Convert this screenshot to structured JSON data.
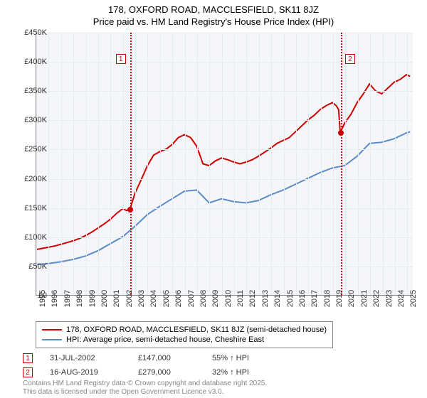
{
  "title": {
    "line1": "178, OXFORD ROAD, MACCLESFIELD, SK11 8JZ",
    "line2": "Price paid vs. HM Land Registry's House Price Index (HPI)"
  },
  "chart": {
    "type": "line",
    "background_color": "#f4f6f9",
    "grid_color": "#e8ebee",
    "ylim": [
      0,
      450000
    ],
    "ytick_step": 50000,
    "ytick_labels": [
      "£0",
      "£50K",
      "£100K",
      "£150K",
      "£200K",
      "£250K",
      "£300K",
      "£350K",
      "£400K",
      "£450K"
    ],
    "xlim": [
      1995,
      2025.5
    ],
    "xtick_step": 1,
    "xtick_labels": [
      "1995",
      "1996",
      "1997",
      "1998",
      "1999",
      "2000",
      "2001",
      "2002",
      "2003",
      "2004",
      "2005",
      "2006",
      "2007",
      "2008",
      "2009",
      "2010",
      "2011",
      "2012",
      "2013",
      "2014",
      "2015",
      "2016",
      "2017",
      "2018",
      "2019",
      "2020",
      "2021",
      "2022",
      "2023",
      "2024",
      "2025"
    ],
    "series": [
      {
        "name": "price_paid",
        "label": "178, OXFORD ROAD, MACCLESFIELD, SK11 8JZ (semi-detached house)",
        "color": "#cc0000",
        "line_width": 2,
        "x": [
          1995,
          1995.5,
          1996,
          1996.5,
          1997,
          1997.5,
          1998,
          1998.5,
          1999,
          1999.5,
          2000,
          2000.5,
          2001,
          2001.5,
          2002,
          2002.3,
          2002.58,
          2003,
          2003.5,
          2004,
          2004.5,
          2005,
          2005.5,
          2006,
          2006.5,
          2007,
          2007.5,
          2008,
          2008.5,
          2009,
          2009.5,
          2010,
          2010.5,
          2011,
          2011.5,
          2012,
          2012.5,
          2013,
          2013.5,
          2014,
          2014.5,
          2015,
          2015.5,
          2016,
          2016.5,
          2017,
          2017.5,
          2018,
          2018.5,
          2019,
          2019.3,
          2019.5,
          2019.629,
          2020,
          2020.5,
          2021,
          2021.5,
          2022,
          2022.5,
          2023,
          2023.5,
          2024,
          2024.5,
          2025,
          2025.3
        ],
        "y": [
          78000,
          80000,
          82000,
          84000,
          87000,
          90000,
          93000,
          97000,
          102000,
          108000,
          115000,
          122000,
          130000,
          140000,
          148000,
          145000,
          147000,
          175000,
          198000,
          222000,
          240000,
          246000,
          250000,
          258000,
          270000,
          275000,
          270000,
          255000,
          225000,
          222000,
          230000,
          235000,
          232000,
          228000,
          225000,
          228000,
          232000,
          238000,
          245000,
          252000,
          260000,
          265000,
          270000,
          280000,
          290000,
          300000,
          308000,
          318000,
          325000,
          330000,
          325000,
          318000,
          279000,
          295000,
          310000,
          330000,
          345000,
          362000,
          350000,
          345000,
          355000,
          365000,
          370000,
          378000,
          375000
        ]
      },
      {
        "name": "hpi",
        "label": "HPI: Average price, semi-detached house, Cheshire East",
        "color": "#5b8bc5",
        "line_width": 2,
        "x": [
          1995,
          1996,
          1997,
          1998,
          1999,
          2000,
          2001,
          2002,
          2003,
          2004,
          2005,
          2006,
          2007,
          2008,
          2009,
          2010,
          2011,
          2012,
          2013,
          2014,
          2015,
          2016,
          2017,
          2018,
          2019,
          2020,
          2021,
          2022,
          2023,
          2024,
          2025,
          2025.3
        ],
        "y": [
          52000,
          54000,
          57000,
          61000,
          67000,
          76000,
          88000,
          100000,
          118000,
          138000,
          152000,
          165000,
          178000,
          180000,
          158000,
          165000,
          160000,
          158000,
          162000,
          172000,
          180000,
          190000,
          200000,
          210000,
          218000,
          222000,
          238000,
          260000,
          262000,
          268000,
          278000,
          280000
        ]
      }
    ],
    "vlines": [
      {
        "x": 2002.58,
        "color": "#cc0000",
        "marker": "1",
        "dot_y": 147000
      },
      {
        "x": 2019.629,
        "color": "#cc0000",
        "marker": "2",
        "dot_y": 279000
      }
    ]
  },
  "legend": {
    "items": [
      {
        "color": "#cc0000",
        "label": "178, OXFORD ROAD, MACCLESFIELD, SK11 8JZ (semi-detached house)"
      },
      {
        "color": "#5b8bc5",
        "label": "HPI: Average price, semi-detached house, Cheshire East"
      }
    ]
  },
  "events": [
    {
      "marker": "1",
      "marker_color": "#cc0000",
      "date": "31-JUL-2002",
      "price": "£147,000",
      "pct": "55% ↑ HPI"
    },
    {
      "marker": "2",
      "marker_color": "#cc0000",
      "date": "16-AUG-2019",
      "price": "£279,000",
      "pct": "32% ↑ HPI"
    }
  ],
  "attribution": {
    "line1": "Contains HM Land Registry data © Crown copyright and database right 2025.",
    "line2": "This data is licensed under the Open Government Licence v3.0."
  }
}
